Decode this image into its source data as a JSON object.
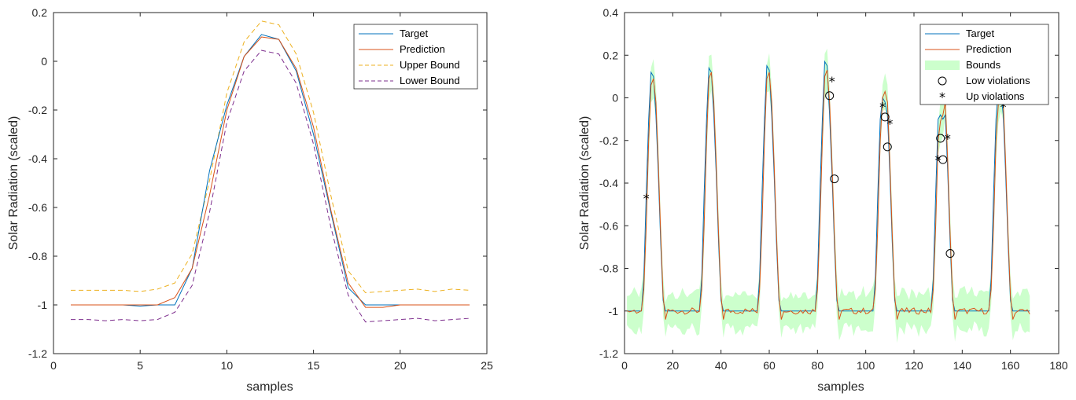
{
  "colors": {
    "target": "#0072BD",
    "prediction": "#D95319",
    "upper": "#EDB120",
    "lower": "#7E2F8E",
    "bounds": "#CCFFCC"
  },
  "chart_data": [
    {
      "type": "line",
      "xlabel": "samples",
      "ylabel": "Solar Radiation (scaled)",
      "xlim": [
        0,
        25
      ],
      "ylim": [
        -1.2,
        0.2
      ],
      "xticks": [
        0,
        5,
        10,
        15,
        20,
        25
      ],
      "yticks": [
        -1.2,
        -1,
        -0.8,
        -0.6,
        -0.4,
        -0.2,
        0,
        0.2
      ],
      "xtick_labels": [
        "0",
        "5",
        "10",
        "15",
        "20",
        "25"
      ],
      "ytick_labels": [
        "-1.2",
        "-1",
        "-0.8",
        "-0.6",
        "-0.4",
        "-0.2",
        "0",
        "0.2"
      ],
      "legend_position": "top-right",
      "x": [
        1,
        2,
        3,
        4,
        5,
        6,
        7,
        8,
        9,
        10,
        11,
        12,
        13,
        14,
        15,
        16,
        17,
        18,
        19,
        20,
        21,
        22,
        23,
        24
      ],
      "series": [
        {
          "name": "Target",
          "style": "solid",
          "color_key": "target",
          "values": [
            -1,
            -1,
            -1,
            -1,
            -1.005,
            -1,
            -1,
            -0.85,
            -0.45,
            -0.18,
            0.02,
            0.11,
            0.09,
            -0.04,
            -0.3,
            -0.62,
            -0.93,
            -1.0,
            -1.0,
            -1.0,
            -1.0,
            -1.0,
            -1.0,
            -1.0
          ]
        },
        {
          "name": "Prediction",
          "style": "solid",
          "color_key": "prediction",
          "values": [
            -1,
            -1,
            -1,
            -1,
            -1.0,
            -1.0,
            -0.97,
            -0.85,
            -0.55,
            -0.2,
            0.02,
            0.1,
            0.09,
            -0.03,
            -0.27,
            -0.61,
            -0.91,
            -1.01,
            -1.01,
            -1.0,
            -1.0,
            -1.0,
            -1.0,
            -1.0
          ]
        },
        {
          "name": "Upper Bound",
          "style": "dashed",
          "color_key": "upper",
          "values": [
            -0.94,
            -0.94,
            -0.94,
            -0.94,
            -0.945,
            -0.935,
            -0.91,
            -0.79,
            -0.49,
            -0.13,
            0.08,
            0.165,
            0.15,
            0.03,
            -0.21,
            -0.55,
            -0.86,
            -0.95,
            -0.945,
            -0.94,
            -0.935,
            -0.945,
            -0.935,
            -0.94
          ]
        },
        {
          "name": "Lower Bound",
          "style": "dashed",
          "color_key": "lower",
          "values": [
            -1.06,
            -1.06,
            -1.065,
            -1.06,
            -1.065,
            -1.06,
            -1.03,
            -0.92,
            -0.62,
            -0.25,
            -0.04,
            0.045,
            0.03,
            -0.09,
            -0.34,
            -0.68,
            -0.96,
            -1.07,
            -1.065,
            -1.06,
            -1.055,
            -1.065,
            -1.06,
            -1.055
          ]
        }
      ]
    },
    {
      "type": "line",
      "xlabel": "samples",
      "ylabel": "Solar Radiation (scaled)",
      "xlim": [
        0,
        180
      ],
      "ylim": [
        -1.2,
        0.4
      ],
      "xticks": [
        0,
        20,
        40,
        60,
        80,
        100,
        120,
        140,
        160,
        180
      ],
      "yticks": [
        -1.2,
        -1,
        -0.8,
        -0.6,
        -0.4,
        -0.2,
        0,
        0.2,
        0.4
      ],
      "xtick_labels": [
        "0",
        "20",
        "40",
        "60",
        "80",
        "100",
        "120",
        "140",
        "160",
        "180"
      ],
      "ytick_labels": [
        "-1.2",
        "-1",
        "-0.8",
        "-0.6",
        "-0.4",
        "-0.2",
        "0",
        "0.2",
        "0.4"
      ],
      "legend_position": "top-right",
      "legend": [
        "Target",
        "Prediction",
        "Bounds",
        "Low violations",
        "Up violations"
      ],
      "day_peaks": [
        {
          "start": 7,
          "target_peak": 0.12,
          "pred_peak": 0.09
        },
        {
          "start": 31,
          "target_peak": 0.14,
          "pred_peak": 0.12
        },
        {
          "start": 55,
          "target_peak": 0.15,
          "pred_peak": 0.12
        },
        {
          "start": 79,
          "target_peak": 0.17,
          "pred_peak": 0.13
        },
        {
          "start": 103,
          "target_peak": 0.0,
          "pred_peak": 0.03
        },
        {
          "start": 127,
          "target_peak": -0.08,
          "pred_peak": -0.08
        },
        {
          "start": 151,
          "target_peak": 0.05,
          "pred_peak": 0.0
        }
      ],
      "x_end": 168,
      "low_violations": [
        {
          "x": 85,
          "y": 0.01
        },
        {
          "x": 87,
          "y": -0.38
        },
        {
          "x": 108,
          "y": -0.09
        },
        {
          "x": 109,
          "y": -0.23
        },
        {
          "x": 131,
          "y": -0.19
        },
        {
          "x": 132,
          "y": -0.29
        },
        {
          "x": 135,
          "y": -0.73
        }
      ],
      "up_violations": [
        {
          "x": 9,
          "y": -0.47
        },
        {
          "x": 86,
          "y": 0.08
        },
        {
          "x": 107,
          "y": -0.04
        },
        {
          "x": 110,
          "y": -0.12
        },
        {
          "x": 130,
          "y": -0.29
        },
        {
          "x": 134,
          "y": -0.19
        },
        {
          "x": 157,
          "y": -0.04
        }
      ]
    }
  ]
}
